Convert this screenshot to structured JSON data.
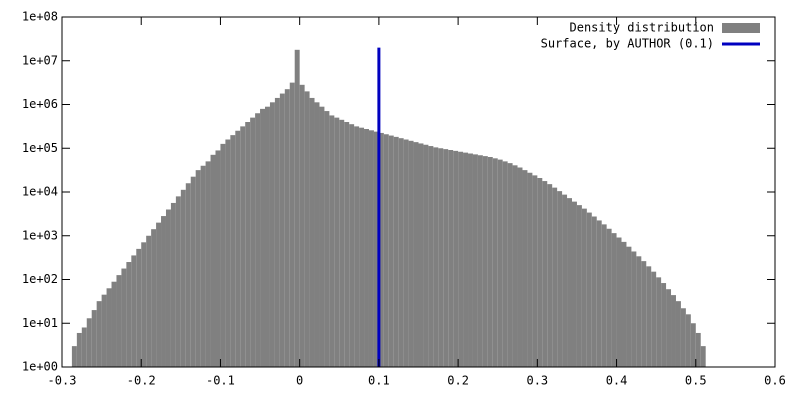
{
  "chart_data": {
    "type": "histogram",
    "log_y": true,
    "legend": "top-right",
    "series": [
      {
        "name": "Density distribution",
        "color": "#808080",
        "bins": [
          -0.2875,
          -0.28125,
          -0.275,
          -0.26875,
          -0.2625,
          -0.25625,
          -0.25,
          -0.24375,
          -0.2375,
          -0.23125,
          -0.225,
          -0.21875,
          -0.2125,
          -0.20625,
          -0.2,
          -0.19375,
          -0.1875,
          -0.18125,
          -0.175,
          -0.16875,
          -0.1625,
          -0.15625,
          -0.15,
          -0.14375,
          -0.1375,
          -0.13125,
          -0.125,
          -0.11875,
          -0.1125,
          -0.10625,
          -0.1,
          -0.09375,
          -0.0875,
          -0.08125,
          -0.075,
          -0.06875,
          -0.0625,
          -0.05625,
          -0.05,
          -0.04375,
          -0.0375,
          -0.03125,
          -0.025,
          -0.01875,
          -0.0125,
          -0.00625,
          0,
          0.00625,
          0.0125,
          0.01875,
          0.025,
          0.03125,
          0.0375,
          0.04375,
          0.05,
          0.05625,
          0.0625,
          0.06875,
          0.075,
          0.08125,
          0.0875,
          0.09375,
          0.1,
          0.10625,
          0.1125,
          0.11875,
          0.125,
          0.13125,
          0.1375,
          0.14375,
          0.15,
          0.15625,
          0.1625,
          0.16875,
          0.175,
          0.18125,
          0.1875,
          0.19375,
          0.2,
          0.20625,
          0.2125,
          0.21875,
          0.225,
          0.23125,
          0.2375,
          0.24375,
          0.25,
          0.25625,
          0.2625,
          0.26875,
          0.275,
          0.28125,
          0.2875,
          0.29375,
          0.3,
          0.30625,
          0.3125,
          0.31875,
          0.325,
          0.33125,
          0.3375,
          0.34375,
          0.35,
          0.35625,
          0.3625,
          0.36875,
          0.375,
          0.38125,
          0.3875,
          0.39375,
          0.4,
          0.40625,
          0.4125,
          0.41875,
          0.425,
          0.43125,
          0.4375,
          0.44375,
          0.45,
          0.45625,
          0.4625,
          0.46875,
          0.475,
          0.48125,
          0.4875,
          0.49375,
          0.5,
          0.50625,
          0.5125
        ],
        "values": [
          3,
          6,
          8,
          13,
          20,
          32,
          45,
          63,
          89,
          126,
          178,
          251,
          355,
          501,
          708,
          1000,
          1413,
          1995,
          2818,
          3981,
          5623,
          7943,
          11220,
          15849,
          22387,
          31623,
          39811,
          50119,
          70795,
          89125,
          125893,
          158489,
          199526,
          251189,
          316228,
          398107,
          501187,
          630957,
          794328,
          891251,
          1122018,
          1412538,
          1778279,
          2238721,
          3162278,
          17782794,
          2818383,
          1995262,
          1412538,
          1122018,
          891251,
          707946,
          562341,
          501187,
          446684,
          398107,
          354813,
          316228,
          295121,
          275423,
          257040,
          239883,
          223872,
          208930,
          194984,
          181970,
          169824,
          158489,
          147911,
          138038,
          128825,
          120226,
          112202,
          104713,
          100000,
          95499,
          91201,
          87096,
          83176,
          79433,
          75858,
          72444,
          69183,
          66069,
          63096,
          58884,
          54954,
          50119,
          45709,
          40738,
          36308,
          31623,
          27542,
          23988,
          20893,
          17783,
          15136,
          12589,
          10471,
          8710,
          7244,
          6026,
          5012,
          4169,
          3388,
          2754,
          2239,
          1820,
          1445,
          1148,
          912,
          724,
          562,
          437,
          339,
          263,
          200,
          151,
          112,
          83,
          60,
          44,
          32,
          22,
          16,
          10,
          6,
          3
        ]
      },
      {
        "name": "Surface, by AUTHOR (0.1)",
        "color": "#0000c0",
        "x": 0.1,
        "height": 20000000
      }
    ],
    "xlim": [
      -0.3,
      0.6
    ],
    "xticks": [
      -0.3,
      -0.2,
      -0.1,
      0,
      0.1,
      0.2,
      0.3,
      0.4,
      0.5,
      0.6
    ],
    "ylim": [
      1,
      100000000
    ],
    "yticks": [
      {
        "value": 1,
        "label": "1e+00"
      },
      {
        "value": 10,
        "label": "1e+01"
      },
      {
        "value": 100,
        "label": "1e+02"
      },
      {
        "value": 1000,
        "label": "1e+03"
      },
      {
        "value": 10000,
        "label": "1e+04"
      },
      {
        "value": 100000,
        "label": "1e+05"
      },
      {
        "value": 1000000,
        "label": "1e+06"
      },
      {
        "value": 10000000,
        "label": "1e+07"
      },
      {
        "value": 100000000,
        "label": "1e+08"
      }
    ]
  }
}
